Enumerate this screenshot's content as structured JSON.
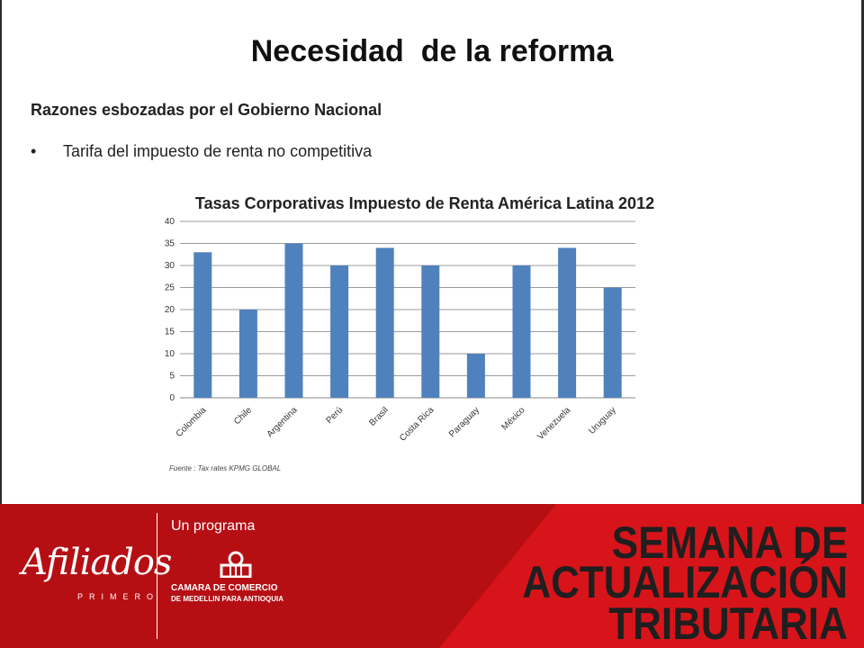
{
  "slide": {
    "title": "Necesidad  de la reforma",
    "subtitle": "Razones esbozadas por el Gobierno Nacional",
    "bullet_symbol": "•",
    "bullet_text": "Tarifa del impuesto de renta no competitiva",
    "source": "Fuente : Tax rates KPMG GLOBAL"
  },
  "chart_data": {
    "type": "bar",
    "title": "Tasas Corporativas Impuesto de Renta América Latina 2012",
    "xlabel": "",
    "ylabel": "",
    "categories": [
      "Colombia",
      "Chile",
      "Argentina",
      "Perú",
      "Brasil",
      "Costa Rica",
      "Paraguay",
      "México",
      "Venezuela",
      "Uruguay"
    ],
    "values": [
      33,
      20,
      35,
      30,
      34,
      30,
      10,
      30,
      34,
      25
    ],
    "ylim": [
      0,
      40
    ],
    "yticks": [
      "0",
      "5",
      "10",
      "15",
      "20",
      "25",
      "30",
      "35",
      "40"
    ],
    "grid": true,
    "legend": "none",
    "bar_color": "#4f81bd"
  },
  "footer": {
    "logo_text": "Afiliados",
    "logo_sub": "PRIMERO",
    "program_label": "Un programa",
    "org_name": "CAMARA DE COMERCIO",
    "org_sub": "DE MEDELLIN PARA ANTIOQUIA",
    "brand_line1": "SEMANA DE",
    "brand_line2": "ACTUALIZACIÓN",
    "brand_line3": "TRIBUTARIA",
    "accent_color": "#d7141a"
  }
}
